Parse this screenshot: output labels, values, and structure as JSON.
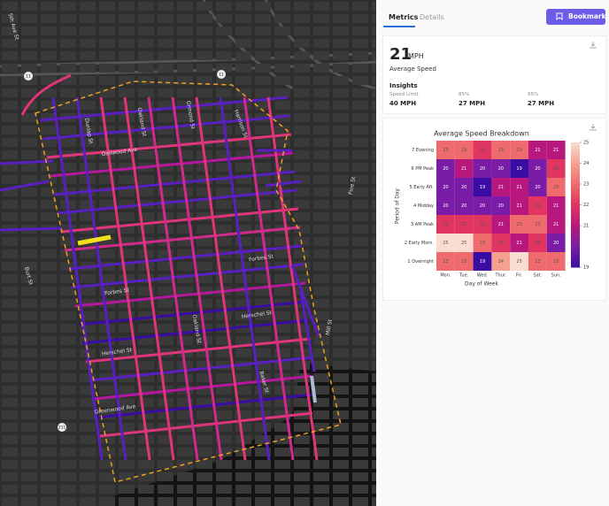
{
  "tabs": [
    "Metrics",
    "Details"
  ],
  "bookmark_button": "Bookmark",
  "metrics": {
    "speed_value": "21",
    "speed_unit": "MPH",
    "speed_label": "Average Speed",
    "insights_title": "Insights",
    "insights": [
      {
        "label": "Speed Limit",
        "value": "40 MPH"
      },
      {
        "label": "85%",
        "value": "27 MPH"
      },
      {
        "label": "95%",
        "value": "27 MPH"
      }
    ]
  },
  "map": {
    "labels": [
      "5th Ave St",
      "Dellwood Ave",
      "Dunlap St",
      "Oakland St",
      "Ormond St",
      "Harrison St",
      "Forbes St",
      "Forbes St",
      "Herschel St",
      "Herschel St",
      "Oakland St",
      "Greenwood Ave",
      "Baker St",
      "Burt St",
      "Mill St",
      "Pine St"
    ],
    "shields": [
      "11",
      "11",
      "211"
    ]
  },
  "chart_data": {
    "type": "heatmap",
    "title": "Average Speed Breakdown",
    "x_label": "Day of Week",
    "y_label": "Period of Day",
    "x_categories": [
      "Mon.",
      "Tue.",
      "Wed.",
      "Thur.",
      "Fri.",
      "Sat.",
      "Sun."
    ],
    "y_categories": [
      "7 Evening",
      "6 PM Peak",
      "5 Early Aft.",
      "4 Midday",
      "3 AM Peak",
      "2 Early Morn.",
      "1 Overnight"
    ],
    "values": [
      [
        23,
        23,
        22,
        23,
        23,
        21,
        21
      ],
      [
        20,
        21,
        20,
        20,
        19,
        20,
        22
      ],
      [
        20,
        20,
        19,
        21,
        21,
        20,
        23
      ],
      [
        20,
        20,
        20,
        20,
        21,
        22,
        21
      ],
      [
        22,
        22,
        22,
        21,
        23,
        23,
        21
      ],
      [
        25,
        25,
        23,
        22,
        21,
        22,
        20
      ],
      [
        23,
        23,
        19,
        24,
        25,
        23,
        23
      ]
    ],
    "colorbar_lim": [
      19,
      25
    ],
    "colorbar_ticks": [
      19,
      21,
      22,
      23,
      24,
      25
    ],
    "colormap": [
      "#3a0ca3",
      "#7a1ca6",
      "#b8187e",
      "#df3560",
      "#ef6a6c",
      "#f6a08f",
      "#fbdcd2"
    ]
  }
}
